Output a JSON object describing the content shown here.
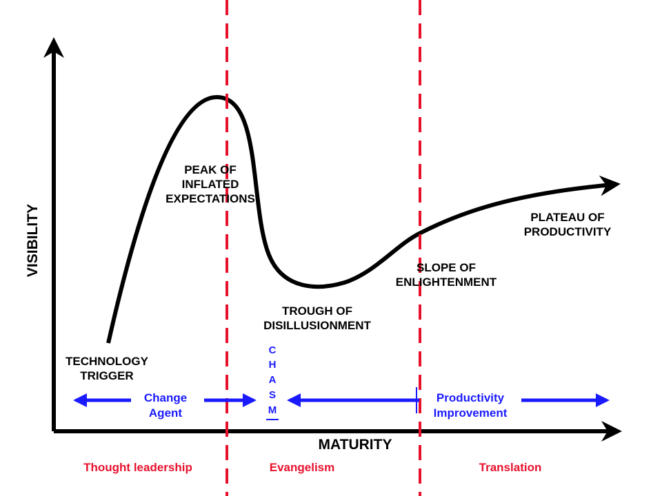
{
  "axes": {
    "y_label": "VISIBILITY",
    "x_label": "MATURITY"
  },
  "phases": {
    "technology_trigger": "TECHNOLOGY\nTRIGGER",
    "peak": "PEAK OF\nINFLATED\nEXPECTATIONS",
    "trough": "TROUGH OF\nDISILLUSIONMENT",
    "slope": "SLOPE OF\nENLIGHTENMENT",
    "plateau": "PLATEAU OF\nPRODUCTIVITY"
  },
  "zones": {
    "change_agent": "Change\nAgent",
    "chasm": [
      "C",
      "H",
      "A",
      "S",
      "M"
    ],
    "productivity_improvement": "Productivity\nImprovement"
  },
  "bottom_labels": {
    "thought_leadership": "Thought leadership",
    "evangelism": "Evangelism",
    "translation": "Translation"
  },
  "colors": {
    "curve": "#000000",
    "divider": "#e8112d",
    "arrow": "#1a1aff"
  }
}
